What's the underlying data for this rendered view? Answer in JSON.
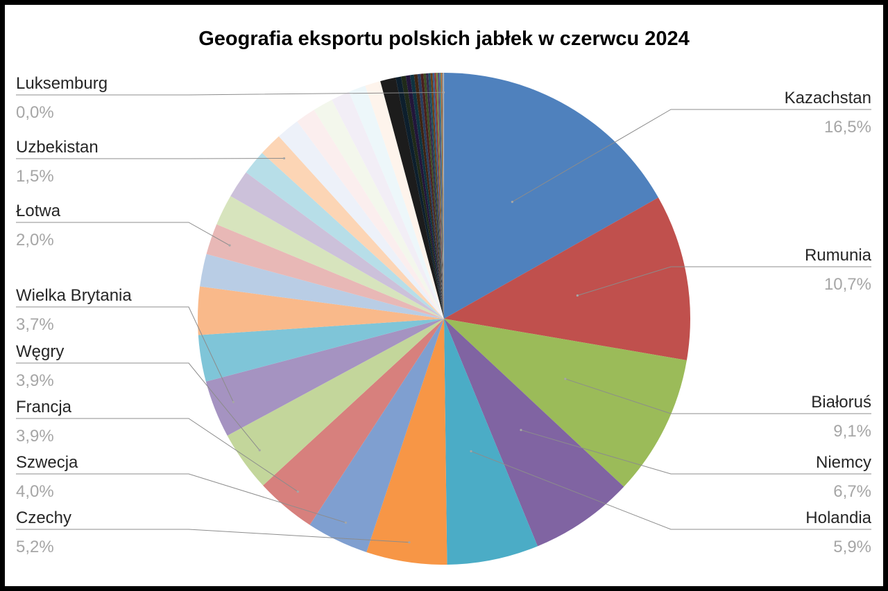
{
  "chart_data": {
    "type": "pie",
    "title": "Geografia eksportu polskich jabłek w czerwcu 2024",
    "legend": "none",
    "labeled": [
      {
        "name": "Kazachstan",
        "pct_label": "16,5%",
        "color": "#4f81bd"
      },
      {
        "name": "Rumunia",
        "pct_label": "10,7%",
        "color": "#c0504d"
      },
      {
        "name": "Białoruś",
        "pct_label": "9,1%",
        "color": "#9bbb59"
      },
      {
        "name": "Niemcy",
        "pct_label": "6,7%",
        "color": "#8064a2"
      },
      {
        "name": "Holandia",
        "pct_label": "5,9%",
        "color": "#4bacc6"
      },
      {
        "name": "Czechy",
        "pct_label": "5,2%",
        "color": "#f79646"
      },
      {
        "name": "Szwecja",
        "pct_label": "4,0%",
        "color": "#7f9fd0"
      },
      {
        "name": "Francja",
        "pct_label": "3,9%",
        "color": "#d7807d"
      },
      {
        "name": "Węgry",
        "pct_label": "3,9%",
        "color": "#c3d69b"
      },
      {
        "name": "Wielka Brytania",
        "pct_label": "3,7%",
        "color": "#a593c1"
      },
      {
        "name": "Łotwa",
        "pct_label": "2,0%",
        "color": "#e8b8b6"
      },
      {
        "name": "Uzbekistan",
        "pct_label": "1,5%",
        "color": "#fac08f"
      },
      {
        "name": "Luksemburg",
        "pct_label": "0,0%",
        "color": "#bfbfbf"
      }
    ],
    "slices": [
      {
        "value": 16.5,
        "color": "#4f81bd"
      },
      {
        "value": 10.7,
        "color": "#c0504d"
      },
      {
        "value": 9.1,
        "color": "#9bbb59"
      },
      {
        "value": 6.7,
        "color": "#8064a2"
      },
      {
        "value": 5.9,
        "color": "#4bacc6"
      },
      {
        "value": 5.2,
        "color": "#f79646"
      },
      {
        "value": 4.0,
        "color": "#7f9fd0"
      },
      {
        "value": 3.9,
        "color": "#d7807d"
      },
      {
        "value": 3.9,
        "color": "#c3d69b"
      },
      {
        "value": 3.7,
        "color": "#a593c1"
      },
      {
        "value": 3.0,
        "color": "#7fc5d8"
      },
      {
        "value": 3.1,
        "color": "#f9b98a"
      },
      {
        "value": 2.1,
        "color": "#b9cde5"
      },
      {
        "value": 2.0,
        "color": "#e8b8b6"
      },
      {
        "value": 2.0,
        "color": "#d7e4bd"
      },
      {
        "value": 1.8,
        "color": "#ccc1da"
      },
      {
        "value": 1.6,
        "color": "#b7dee8"
      },
      {
        "value": 1.5,
        "color": "#fcd5b5"
      },
      {
        "value": 1.5,
        "color": "#edf1f9"
      },
      {
        "value": 1.3,
        "color": "#fbeeee"
      },
      {
        "value": 1.3,
        "color": "#f3f7ec"
      },
      {
        "value": 1.2,
        "color": "#f2eef6"
      },
      {
        "value": 1.1,
        "color": "#edf7fa"
      },
      {
        "value": 1.0,
        "color": "#fef4ec"
      },
      {
        "value": 1.0,
        "color": "#1c1c1c"
      },
      {
        "value": 0.35,
        "color": "#0d1f2d"
      },
      {
        "value": 0.3,
        "color": "#1f2a1a"
      },
      {
        "value": 0.28,
        "color": "#22163a"
      },
      {
        "value": 0.25,
        "color": "#0f3340"
      },
      {
        "value": 0.22,
        "color": "#3d2413"
      },
      {
        "value": 0.2,
        "color": "#2a3d5c"
      },
      {
        "value": 0.18,
        "color": "#4a1f1d"
      },
      {
        "value": 0.16,
        "color": "#3c4d24"
      },
      {
        "value": 0.15,
        "color": "#35284a"
      },
      {
        "value": 0.14,
        "color": "#1e4e5c"
      },
      {
        "value": 0.13,
        "color": "#6b3f16"
      },
      {
        "value": 0.12,
        "color": "#385d8a"
      },
      {
        "value": 0.11,
        "color": "#8c3836"
      },
      {
        "value": 0.1,
        "color": "#71893f"
      },
      {
        "value": 0.1,
        "color": "#5c4776"
      },
      {
        "value": 0.09,
        "color": "#357c8f"
      },
      {
        "value": 0.08,
        "color": "#b66d31"
      },
      {
        "value": 0.08,
        "color": "#7f7f7f"
      },
      {
        "value": 0.05,
        "color": "#bfbfbf"
      }
    ]
  }
}
